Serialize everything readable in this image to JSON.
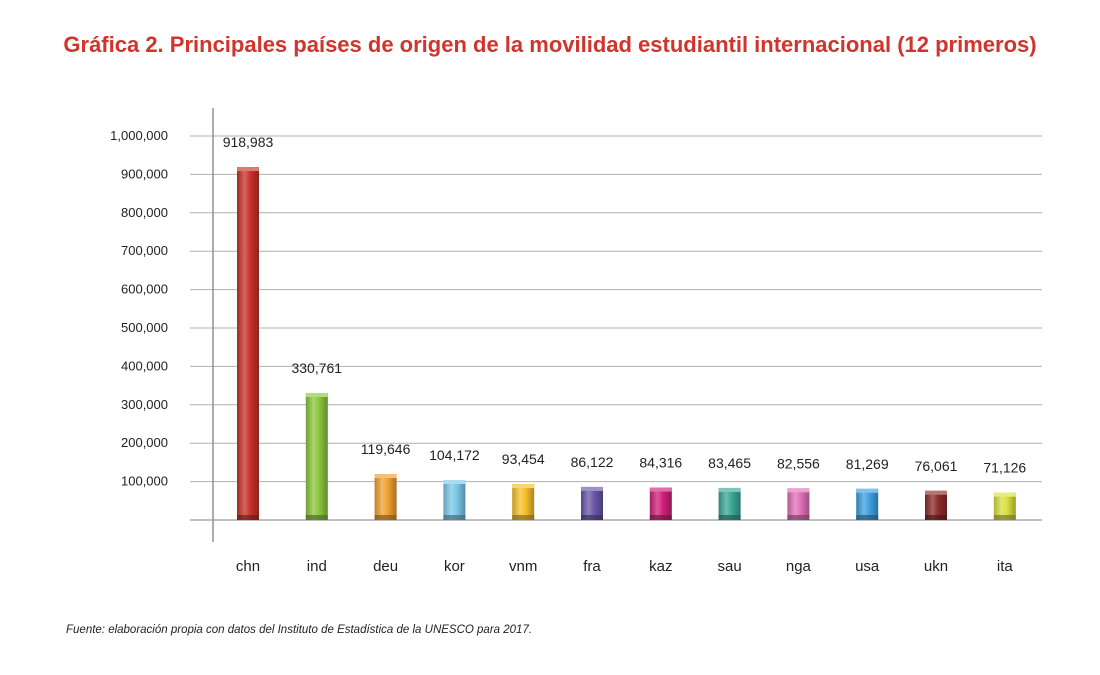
{
  "chart_data": {
    "type": "bar",
    "title": "Gráfica 2. Principales países de origen de la movilidad estudiantil internacional (12 primeros)",
    "categories": [
      "chn",
      "ind",
      "deu",
      "kor",
      "vnm",
      "fra",
      "kaz",
      "sau",
      "nga",
      "usa",
      "ukn",
      "ita"
    ],
    "values": [
      918983,
      330761,
      119646,
      104172,
      93454,
      86122,
      84316,
      83465,
      82556,
      81269,
      76061,
      71126
    ],
    "value_labels": [
      "918,983",
      "330,761",
      "119,646",
      "104,172",
      "93,454",
      "86,122",
      "84,316",
      "83,465",
      "82,556",
      "81,269",
      "76,061",
      "71,126"
    ],
    "colors": [
      "#c8322a",
      "#8cc63f",
      "#f0a030",
      "#7cc8e8",
      "#f5c02a",
      "#6a56a8",
      "#d0207a",
      "#3aa898",
      "#e070b8",
      "#3da0e0",
      "#8a2c2a",
      "#d8e040"
    ],
    "y_ticks": [
      100000,
      200000,
      300000,
      400000,
      500000,
      600000,
      700000,
      800000,
      900000,
      1000000
    ],
    "y_tick_labels": [
      "100,000",
      "200,000",
      "300,000",
      "400,000",
      "500,000",
      "600,000",
      "700,000",
      "800,000",
      "900,000",
      "1,000,000"
    ],
    "ylim": [
      0,
      1000000
    ],
    "grid": true,
    "legend": "none"
  },
  "source": "Fuente: elaboración propia con datos del Instituto de Estadística de la UNESCO para 2017."
}
